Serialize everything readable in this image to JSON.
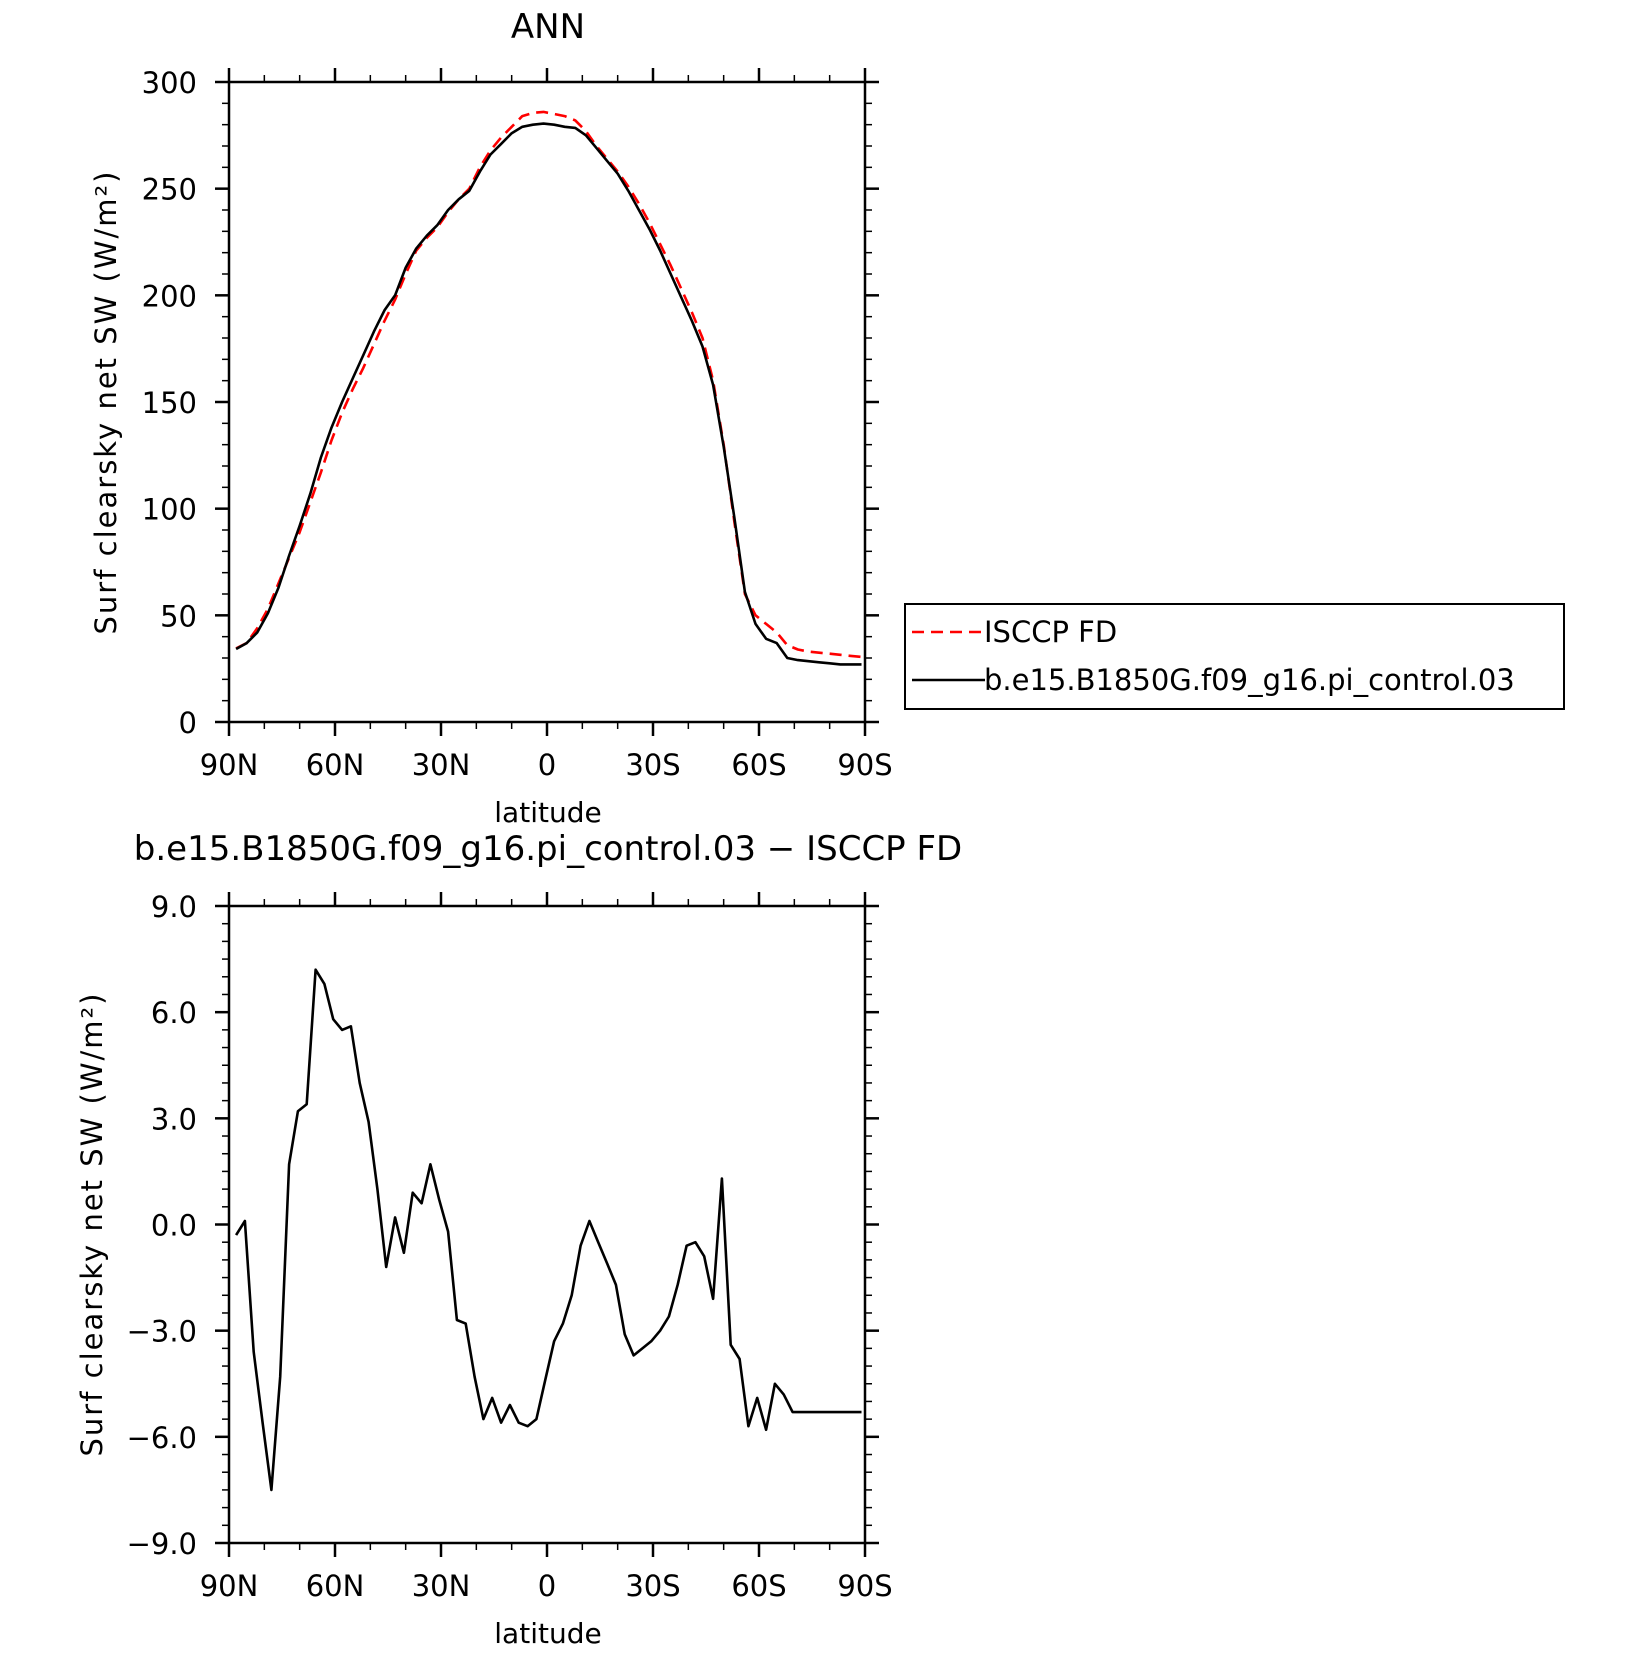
{
  "chart_data": [
    {
      "type": "line",
      "title": "ANN",
      "xlabel": "latitude",
      "ylabel": "Surf clearsky net SW (W/m²)",
      "xlim": [
        90,
        -90
      ],
      "ylim": [
        0,
        300
      ],
      "x_ticks": [
        90,
        60,
        30,
        0,
        -30,
        -60,
        -90
      ],
      "x_tick_labels": [
        "90N",
        "60N",
        "30N",
        "0",
        "30S",
        "60S",
        "90S"
      ],
      "y_ticks": [
        0,
        50,
        100,
        150,
        200,
        250,
        300
      ],
      "y_tick_labels": [
        "0",
        "50",
        "100",
        "150",
        "200",
        "250",
        "300"
      ],
      "legend": {
        "position": "right"
      },
      "x": [
        88,
        85,
        82,
        79,
        76,
        73,
        70,
        67,
        64,
        61,
        58,
        55,
        52,
        49,
        46,
        43,
        40,
        37,
        34,
        31,
        28,
        25,
        22,
        19,
        16,
        13,
        10,
        7,
        4,
        1,
        -2,
        -5,
        -8,
        -11,
        -14,
        -17,
        -20,
        -23,
        -26,
        -29,
        -32,
        -35,
        -38,
        -41,
        -44,
        -47,
        -50,
        -53,
        -56,
        -59,
        -62,
        -65,
        -68,
        -71,
        -74,
        -77,
        -80,
        -83,
        -86,
        -89
      ],
      "series": [
        {
          "name": "ISCCP FD",
          "color": "#ff0000",
          "dash": "dashed",
          "values": [
            34.5,
            37,
            44,
            53,
            65,
            77,
            89,
            103,
            117,
            132,
            145,
            156,
            166,
            177,
            188,
            198,
            210,
            221,
            227,
            232,
            239,
            245,
            250,
            260,
            268,
            274,
            279,
            284,
            285.5,
            286,
            285,
            284,
            282,
            277,
            270,
            264,
            258,
            251,
            243,
            234,
            224,
            214,
            203,
            192,
            180,
            160,
            130,
            94,
            60,
            50,
            46,
            42,
            36,
            34,
            33,
            32.5,
            32,
            31.5,
            31,
            30.5
          ]
        },
        {
          "name": "b.e15.B1850G.f09_g16.pi_control.03",
          "color": "#000000",
          "dash": "solid",
          "values": [
            34.2,
            37,
            42,
            51,
            63,
            78,
            92,
            107,
            124,
            138,
            150,
            161,
            172,
            183,
            193,
            200,
            213,
            222,
            228,
            233,
            240,
            245,
            249,
            258,
            266,
            271,
            276,
            279,
            280,
            280.5,
            280,
            279,
            278.5,
            275,
            269,
            263,
            257,
            249,
            240,
            231,
            221,
            210,
            199,
            188,
            176,
            158,
            129,
            96,
            61,
            46,
            39,
            37,
            30,
            29,
            28.5,
            28,
            27.5,
            27,
            27,
            27
          ]
        }
      ]
    },
    {
      "type": "line",
      "title": "b.e15.B1850G.f09_g16.pi_control.03 − ISCCP FD",
      "xlabel": "latitude",
      "ylabel": "Surf clearsky net SW (W/m²)",
      "xlim": [
        90,
        -90
      ],
      "ylim": [
        -9,
        9
      ],
      "x_ticks": [
        90,
        60,
        30,
        0,
        -30,
        -60,
        -90
      ],
      "x_tick_labels": [
        "90N",
        "60N",
        "30N",
        "0",
        "30S",
        "60S",
        "90S"
      ],
      "y_ticks": [
        9,
        6,
        3,
        0,
        -3,
        -6,
        -9
      ],
      "y_tick_labels": [
        "9.0",
        "6.0",
        "3.0",
        "0.0",
        "−3.0",
        "−6.0",
        "−9.0"
      ],
      "x": [
        88,
        85.5,
        83,
        80.5,
        78,
        75.5,
        73,
        70.5,
        68,
        65.5,
        63,
        60.5,
        58,
        55.5,
        53,
        50.5,
        48,
        45.5,
        43,
        40.5,
        38,
        35.5,
        33,
        30.5,
        28,
        25.5,
        23,
        20.5,
        18,
        15.5,
        13,
        10.5,
        8,
        5.5,
        3,
        0.5,
        -2,
        -4.5,
        -7,
        -9.5,
        -12,
        -14.5,
        -17,
        -19.5,
        -22,
        -24.5,
        -27,
        -29.5,
        -32,
        -34.5,
        -37,
        -39.5,
        -42,
        -44.5,
        -47,
        -49.5,
        -52,
        -54.5,
        -57,
        -59.5,
        -62,
        -64.5,
        -67,
        -69.5,
        -72,
        -74.5,
        -77,
        -79.5,
        -82,
        -84.5,
        -87,
        -89
      ],
      "series": [
        {
          "name": "",
          "color": "#000000",
          "dash": "solid",
          "values": [
            -0.3,
            0.1,
            -3.6,
            -5.6,
            -7.5,
            -4.3,
            1.7,
            3.2,
            3.4,
            7.2,
            6.8,
            5.8,
            5.5,
            5.6,
            4.0,
            2.9,
            1.0,
            -1.2,
            0.2,
            -0.8,
            0.9,
            0.6,
            1.7,
            0.7,
            -0.2,
            -2.7,
            -2.8,
            -4.3,
            -5.5,
            -4.9,
            -5.6,
            -5.1,
            -5.6,
            -5.7,
            -5.5,
            -4.4,
            -3.3,
            -2.8,
            -2.0,
            -0.6,
            0.1,
            -0.5,
            -1.1,
            -1.7,
            -3.1,
            -3.7,
            -3.5,
            -3.3,
            -3.0,
            -2.6,
            -1.7,
            -0.6,
            -0.5,
            -0.9,
            -2.1,
            1.3,
            -3.4,
            -3.8,
            -5.7,
            -4.9,
            -5.8,
            -4.5,
            -4.8,
            -5.3,
            -5.3,
            -5.3,
            -5.3,
            -5.3,
            -5.3,
            -5.3,
            -5.3,
            -5.3
          ]
        }
      ]
    }
  ]
}
